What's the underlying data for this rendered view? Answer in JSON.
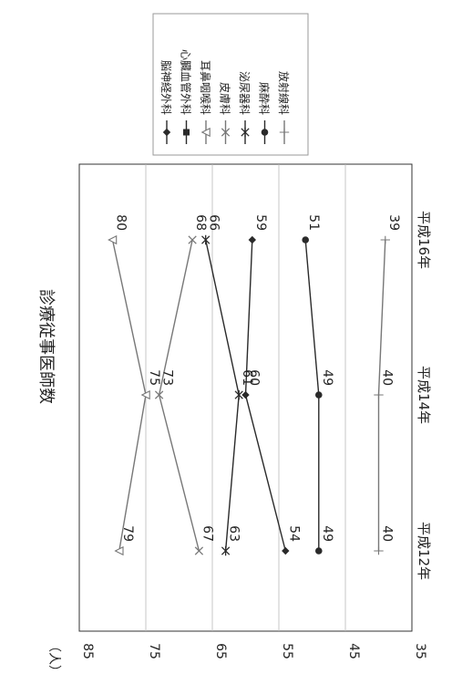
{
  "chart_data": {
    "type": "line",
    "title": "診療従事医師数",
    "ylabel": "（人）",
    "ylim": [
      35,
      85
    ],
    "yticks": [
      85,
      75,
      65,
      55,
      45,
      35
    ],
    "categories": [
      "平成12年",
      "平成14年",
      "平成16年"
    ],
    "series": [
      {
        "name": "脳神経外科",
        "values": [
          54,
          60,
          59
        ],
        "marker": "diamond-filled",
        "color": "#2a2a2a"
      },
      {
        "name": "心臓血管外科",
        "values": [
          null,
          null,
          null
        ],
        "marker": "square-filled",
        "color": "#2a2a2a"
      },
      {
        "name": "耳鼻咽喉科",
        "values": [
          79,
          75,
          80
        ],
        "marker": "triangle-open",
        "color": "#777777"
      },
      {
        "name": "皮膚科",
        "values": [
          67,
          73,
          68
        ],
        "marker": "x",
        "color": "#777777"
      },
      {
        "name": "泌尿器科",
        "values": [
          63,
          61,
          66
        ],
        "marker": "asterisk",
        "color": "#2a2a2a"
      },
      {
        "name": "麻酔科",
        "values": [
          49,
          49,
          51
        ],
        "marker": "circle-filled",
        "color": "#2a2a2a"
      },
      {
        "name": "放射線科",
        "values": [
          40,
          40,
          39
        ],
        "marker": "plus",
        "color": "#777777"
      }
    ],
    "data_labels": [
      {
        "series": "耳鼻咽喉科",
        "labels": [
          "79",
          "75",
          "80"
        ]
      },
      {
        "series": "皮膚科",
        "labels": [
          "67",
          "73",
          "68"
        ]
      },
      {
        "series": "泌尿器科",
        "labels": [
          "63",
          "61",
          "66"
        ]
      },
      {
        "series": "脳神経外科",
        "labels": [
          "54",
          "60",
          "59"
        ]
      },
      {
        "series": "麻酔科",
        "labels": [
          "49",
          "49",
          "51"
        ]
      },
      {
        "series": "放射線科",
        "labels": [
          "40",
          "40",
          "39"
        ]
      }
    ],
    "grid": true,
    "legend_position": "top-right"
  }
}
